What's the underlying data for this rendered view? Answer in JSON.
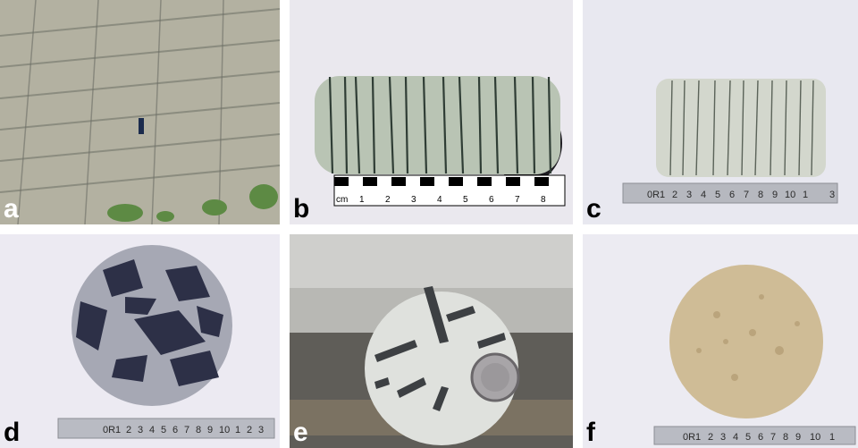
{
  "figure": {
    "panels": [
      {
        "label": "a",
        "subject": "outcrop-photo"
      },
      {
        "label": "b",
        "subject": "banded-core-photo"
      },
      {
        "label": "c",
        "subject": "banded-core-photo"
      },
      {
        "label": "d",
        "subject": "breccia-core-cross-section"
      },
      {
        "label": "e",
        "subject": "core-cross-section-with-coin"
      },
      {
        "label": "f",
        "subject": "sandstone-core-cross-section"
      }
    ],
    "scale_b": {
      "unit": "cm",
      "ticks": [
        "1",
        "2",
        "3",
        "4",
        "5",
        "6",
        "7",
        "8"
      ]
    },
    "ruler_c": {
      "ticks": [
        "0R1",
        "2",
        "3",
        "4",
        "5",
        "6",
        "7",
        "8",
        "9",
        "10",
        "1",
        "3"
      ]
    },
    "ruler_d": {
      "ticks": [
        "0R1",
        "2",
        "3",
        "4",
        "5",
        "6",
        "7",
        "8",
        "9",
        "10",
        "1",
        "2",
        "3"
      ]
    },
    "ruler_f": {
      "ticks": [
        "0R1",
        "2",
        "3",
        "4",
        "5",
        "6",
        "7",
        "8",
        "9",
        "10",
        "1"
      ]
    }
  }
}
